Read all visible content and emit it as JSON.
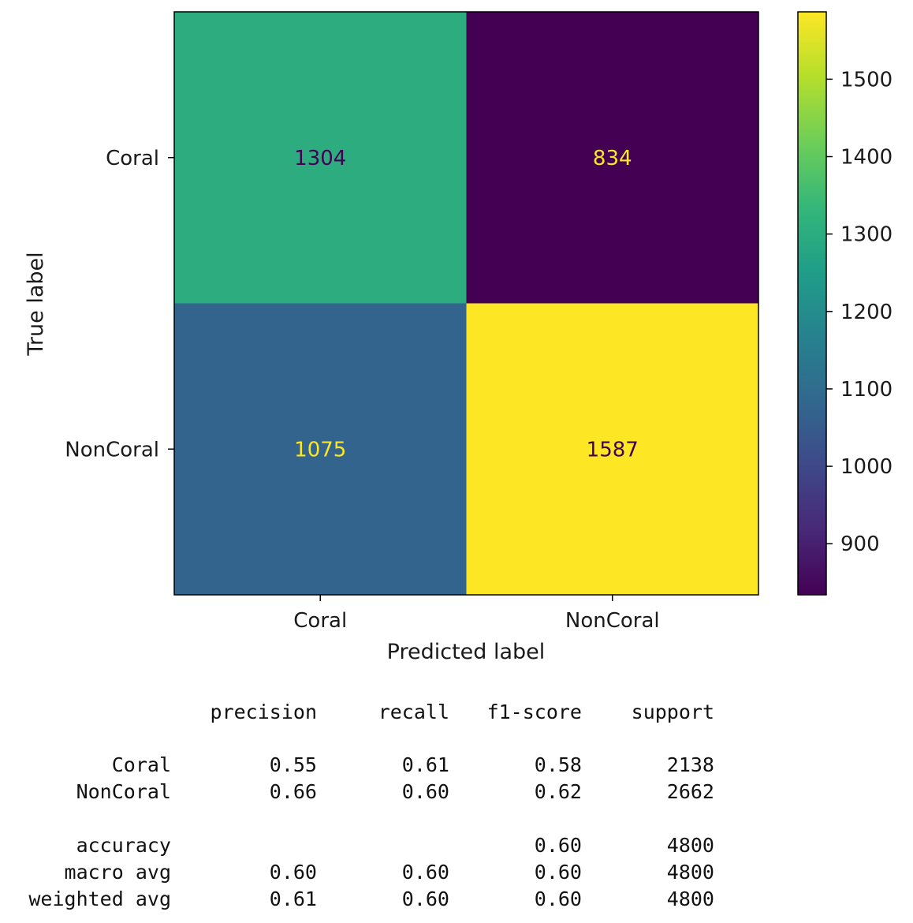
{
  "chart_data": {
    "type": "heatmap",
    "title": "",
    "xlabel": "Predicted label",
    "ylabel": "True label",
    "x_categories": [
      "Coral",
      "NonCoral"
    ],
    "y_categories": [
      "Coral",
      "NonCoral"
    ],
    "values": [
      [
        1304,
        834
      ],
      [
        1075,
        1587
      ]
    ],
    "colormap": "viridis",
    "colorbar": {
      "range": [
        834,
        1587
      ],
      "ticks": [
        900,
        1000,
        1100,
        1200,
        1300,
        1400,
        1500
      ]
    },
    "grid": false
  },
  "report": {
    "headers": [
      "precision",
      "recall",
      "f1-score",
      "support"
    ],
    "rows": [
      {
        "label": "Coral",
        "precision": "0.55",
        "recall": "0.61",
        "f1": "0.58",
        "support": "2138"
      },
      {
        "label": "NonCoral",
        "precision": "0.66",
        "recall": "0.60",
        "f1": "0.62",
        "support": "2662"
      },
      {
        "label": "accuracy",
        "precision": "",
        "recall": "",
        "f1": "0.60",
        "support": "4800"
      },
      {
        "label": "macro avg",
        "precision": "0.60",
        "recall": "0.60",
        "f1": "0.60",
        "support": "4800"
      },
      {
        "label": "weighted avg",
        "precision": "0.61",
        "recall": "0.60",
        "f1": "0.60",
        "support": "4800"
      }
    ]
  }
}
